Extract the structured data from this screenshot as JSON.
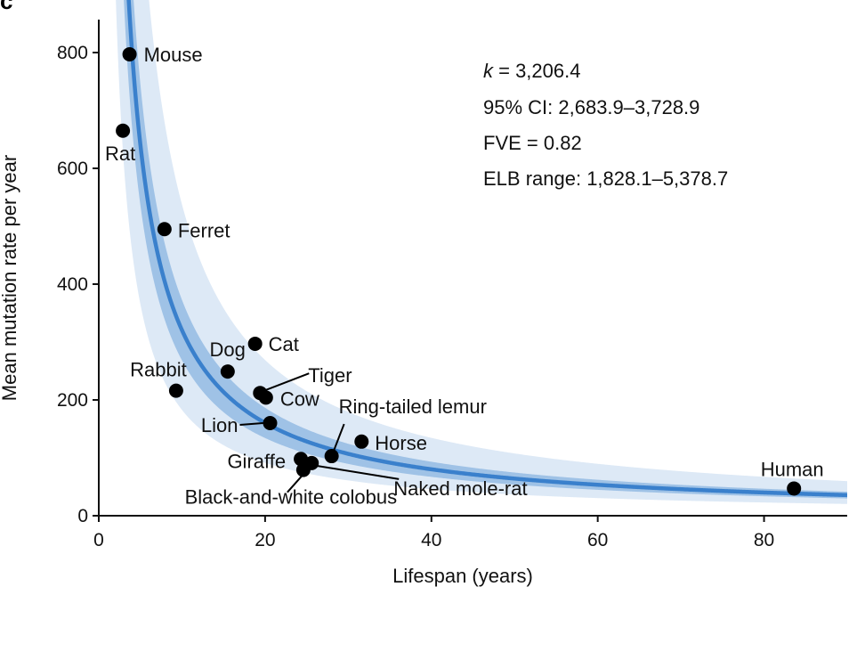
{
  "panel_label": "c",
  "chart_data": {
    "type": "scatter",
    "xlabel": "Lifespan (years)",
    "ylabel": "Mean mutation rate per year",
    "xlim": [
      0,
      90
    ],
    "ylim": [
      0,
      880
    ],
    "x_ticks": [
      0,
      20,
      40,
      60,
      80
    ],
    "y_ticks": [
      0,
      200,
      400,
      600,
      800
    ],
    "fit": {
      "formula": "y = k / x",
      "k": 3206.4,
      "ci_low": 2683.9,
      "ci_high": 3728.9,
      "elb_low": 1828.1,
      "elb_high": 5378.7
    },
    "stats": {
      "k_symbol": "k",
      "k_rest": " = 3,206.4",
      "ci": "95% CI: 2,683.9–3,728.9",
      "fve": "FVE = 0.82",
      "elb": "ELB range: 1,828.1–5,378.7"
    },
    "points": [
      {
        "name": "Mouse",
        "x": 3.7,
        "y": 797
      },
      {
        "name": "Rat",
        "x": 2.9,
        "y": 665
      },
      {
        "name": "Ferret",
        "x": 7.9,
        "y": 495
      },
      {
        "name": "Dog",
        "x": 15.5,
        "y": 249
      },
      {
        "name": "Cat",
        "x": 18.8,
        "y": 297
      },
      {
        "name": "Rabbit",
        "x": 9.3,
        "y": 216
      },
      {
        "name": "Tiger",
        "x": 19.4,
        "y": 212
      },
      {
        "name": "Cow",
        "x": 20.1,
        "y": 204
      },
      {
        "name": "Lion",
        "x": 20.6,
        "y": 160
      },
      {
        "name": "Ring-tailed lemur",
        "x": 28.0,
        "y": 103
      },
      {
        "name": "Horse",
        "x": 31.6,
        "y": 128
      },
      {
        "name": "Giraffe",
        "x": 24.3,
        "y": 98
      },
      {
        "name": "Black-and-white colobus",
        "x": 24.6,
        "y": 79
      },
      {
        "name": "Naked mole-rat",
        "x": 25.6,
        "y": 91
      },
      {
        "name": "Human",
        "x": 83.6,
        "y": 47
      }
    ]
  },
  "colors": {
    "fit_line": "#3a80cc",
    "ci_band": "#9fc2e6",
    "elb_band": "#dde9f6",
    "point": "#000000",
    "axis": "#111111"
  }
}
